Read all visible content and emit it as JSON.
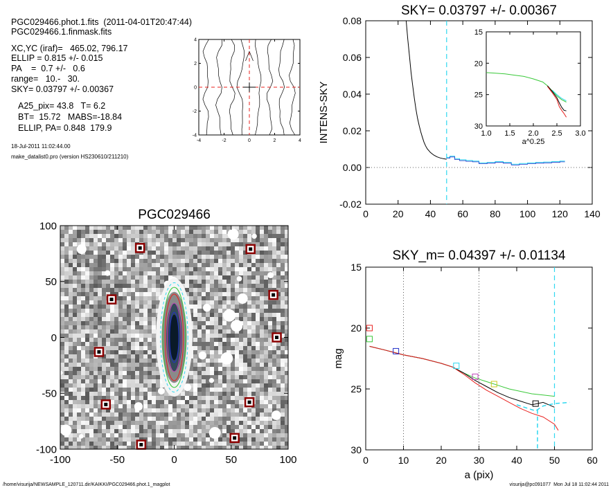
{
  "info": {
    "file_line": "PGC029466.phot.1.fits  (2011-04-01T20:47:44)",
    "mask_line": "PGC029466.1.finmask.fits",
    "xcyc": "XC,YC (iraf)=   465.02, 796.17",
    "ellip": "ELLIP = 0.815 +/- 0.015",
    "pa": "PA    =  0.7 +/-   0.6",
    "range": "range=   10.-   30.",
    "sky": "SKY= 0.03797 +/- 0.00367",
    "a25": "A25_pix= 43.8   T= 6.2",
    "bt": "BT=  15.72   MABS=-18.84",
    "ellip_pa": "ELLIP, PA= 0.848  179.9",
    "date": "18-Jul-2011 11:02:44.00",
    "program": "make_datalist0.pro (version HS230610/211210)"
  },
  "footer": {
    "left": "/home/visurija/NEWSAMPLE_120711.dir/KAIKKI/PGC029466.phot.1_magplot",
    "right": "visurija@pc091077  Mon Jul 18 11:02:44 2011"
  },
  "colors": {
    "black": "#000000",
    "red": "#e8201e",
    "green": "#38c838",
    "cyan": "#2ed8f0",
    "blue": "#2030c8",
    "magenta": "#c040b8",
    "yellow": "#c8c820",
    "mask_box": "#8b0000"
  },
  "chart_data": [
    {
      "id": "residual_contours",
      "type": "line",
      "title": "",
      "xlabel": "",
      "ylabel": "",
      "xlim": [
        -4,
        4
      ],
      "ylim": [
        -4,
        4
      ],
      "x_ticks": [
        "-4",
        "-2",
        "0",
        "2",
        "4"
      ],
      "y_ticks": [
        "-4",
        "-2",
        "0",
        "2",
        "4"
      ],
      "contour_x_positions": [
        -3.4,
        -2.4,
        -1.4,
        -0.5,
        0.6,
        1.6,
        2.5,
        3.4
      ],
      "center_lines": {
        "x": 0,
        "y": 0
      }
    },
    {
      "id": "intensity_profile",
      "type": "line",
      "title": "SKY= 0.03797 +/- 0.00367",
      "xlabel": "",
      "ylabel": "INTENS-SKY",
      "xlim": [
        0,
        140
      ],
      "ylim": [
        -0.02,
        0.08
      ],
      "x_ticks": [
        "0",
        "20",
        "40",
        "60",
        "80",
        "100",
        "120",
        "140"
      ],
      "y_ticks": [
        "-0.02",
        "0.00",
        "0.02",
        "0.04",
        "0.06",
        "0.08"
      ],
      "vline_x": 50,
      "series": [
        {
          "color": "black",
          "x": [
            25,
            26,
            27,
            28,
            29,
            30,
            31,
            32,
            33,
            34,
            35,
            36,
            37,
            38,
            40,
            42,
            44,
            46,
            48,
            50
          ],
          "y": [
            0.082,
            0.07,
            0.061,
            0.052,
            0.045,
            0.038,
            0.032,
            0.027,
            0.023,
            0.0195,
            0.0165,
            0.0138,
            0.0118,
            0.0102,
            0.0082,
            0.0068,
            0.0058,
            0.0052,
            0.0048,
            0.0045
          ]
        },
        {
          "color": "cyan",
          "x": [
            50,
            52,
            55,
            58,
            62,
            66,
            70,
            75,
            80,
            85,
            90,
            95,
            100,
            105,
            110,
            115,
            120,
            123
          ],
          "y": [
            0.0055,
            0.0062,
            0.0048,
            0.0042,
            0.0038,
            0.0035,
            0.0025,
            0.0028,
            0.0032,
            0.0028,
            0.0018,
            0.0022,
            0.0025,
            0.0028,
            0.003,
            0.0032,
            0.0035,
            0.0036
          ]
        }
      ],
      "inset": {
        "xlabel": "a^0.25",
        "xlim": [
          1.0,
          3.0
        ],
        "ylim_reversed": [
          30,
          15
        ],
        "x_ticks": [
          "1.0",
          "1.5",
          "2.0",
          "2.5",
          "3.0"
        ],
        "y_ticks": [
          "15",
          "20",
          "25",
          "30"
        ],
        "series": [
          {
            "color": "green",
            "x": [
              1.0,
              1.2,
              1.4,
              1.6,
              1.8,
              2.0,
              2.2,
              2.3,
              2.4,
              2.5,
              2.6,
              2.7
            ],
            "y": [
              21.5,
              21.6,
              21.7,
              21.9,
              22.1,
              22.5,
              23.0,
              23.6,
              24.4,
              25.2,
              25.8,
              26.2
            ]
          },
          {
            "color": "black",
            "x": [
              2.3,
              2.4,
              2.5,
              2.55,
              2.6,
              2.65,
              2.7
            ],
            "y": [
              23.6,
              24.5,
              25.5,
              26.3,
              27.0,
              27.5,
              27.6
            ]
          },
          {
            "color": "red",
            "x": [
              2.3,
              2.4,
              2.5,
              2.55,
              2.6,
              2.65,
              2.7
            ],
            "y": [
              23.7,
              24.7,
              25.8,
              26.9,
              27.5,
              28.0,
              28.6
            ]
          },
          {
            "color": "cyan",
            "x": [
              2.4,
              2.5,
              2.6,
              2.7
            ],
            "y": [
              24.3,
              25.0,
              25.6,
              26.0
            ]
          }
        ]
      }
    },
    {
      "id": "galaxy_image",
      "type": "heatmap",
      "title": "PGC029466",
      "xlabel": "",
      "ylabel": "",
      "xlim": [
        -100,
        100
      ],
      "ylim": [
        -100,
        100
      ],
      "x_ticks": [
        "-100",
        "-50",
        "0",
        "50",
        "100"
      ],
      "y_ticks": [
        "-100",
        "-50",
        "0",
        "50",
        "100"
      ],
      "mask_boxes": [
        [
          -30,
          80
        ],
        [
          67,
          79
        ],
        [
          -55,
          34
        ],
        [
          87,
          38
        ],
        [
          -66,
          -13
        ],
        [
          90,
          0
        ],
        [
          -60,
          -60
        ],
        [
          66,
          -58
        ],
        [
          -29,
          -96
        ],
        [
          53,
          -90
        ]
      ],
      "ellipse_semi_axes": [
        [
          4,
          22
        ],
        [
          6,
          30
        ],
        [
          8,
          38
        ],
        [
          10,
          44
        ],
        [
          12,
          48
        ]
      ]
    },
    {
      "id": "magnitude_profile",
      "type": "line",
      "title": "SKY_m=  0.04397 +/- 0.01134",
      "xlabel": "a (pix)",
      "ylabel": "mag",
      "xlim": [
        0,
        60
      ],
      "ylim_reversed": [
        30,
        15
      ],
      "x_ticks": [
        "0",
        "10",
        "20",
        "30",
        "40",
        "50",
        "60"
      ],
      "y_ticks": [
        "15",
        "20",
        "25",
        "30"
      ],
      "dotted_vlines": [
        10,
        30
      ],
      "dashed_vlines": [
        50
      ],
      "series": [
        {
          "color": "green",
          "x": [
            1,
            5,
            10,
            15,
            20,
            23,
            26,
            29,
            32,
            35,
            38,
            41,
            44,
            47,
            50
          ],
          "y": [
            21.5,
            21.8,
            22.2,
            22.5,
            22.9,
            23.2,
            23.7,
            24.1,
            24.4,
            24.7,
            25.0,
            25.2,
            25.4,
            25.5,
            25.6
          ]
        },
        {
          "color": "black",
          "x": [
            1,
            5,
            10,
            15,
            20,
            23,
            26,
            29,
            32,
            35,
            38,
            41,
            44,
            47,
            50
          ],
          "y": [
            21.5,
            21.8,
            22.2,
            22.5,
            22.9,
            23.2,
            23.7,
            24.3,
            24.8,
            25.3,
            25.7,
            26.0,
            26.3,
            26.1,
            26.5
          ]
        },
        {
          "color": "red",
          "x": [
            1,
            5,
            10,
            15,
            20,
            23,
            26,
            29,
            32,
            35,
            38,
            41,
            44,
            47,
            50,
            51
          ],
          "y": [
            21.5,
            21.8,
            22.2,
            22.5,
            22.9,
            23.2,
            23.8,
            24.5,
            25.1,
            25.6,
            26.1,
            26.6,
            27.0,
            27.3,
            27.9,
            28.4
          ]
        },
        {
          "color": "cyan",
          "x": [
            40,
            43,
            45,
            47,
            50,
            54
          ],
          "y": [
            26.3,
            26.6,
            26.8,
            26.4,
            26.2,
            26.1
          ]
        }
      ],
      "markers": [
        {
          "color": "red",
          "x": 1,
          "y": 20.0
        },
        {
          "color": "green",
          "x": 1,
          "y": 20.9
        },
        {
          "color": "blue",
          "x": 8,
          "y": 21.9
        },
        {
          "color": "cyan",
          "x": 24,
          "y": 23.1
        },
        {
          "color": "magenta",
          "x": 29,
          "y": 24.0
        },
        {
          "color": "yellow",
          "x": 34,
          "y": 24.6
        },
        {
          "color": "black",
          "x": 45,
          "y": 26.2
        }
      ]
    }
  ]
}
